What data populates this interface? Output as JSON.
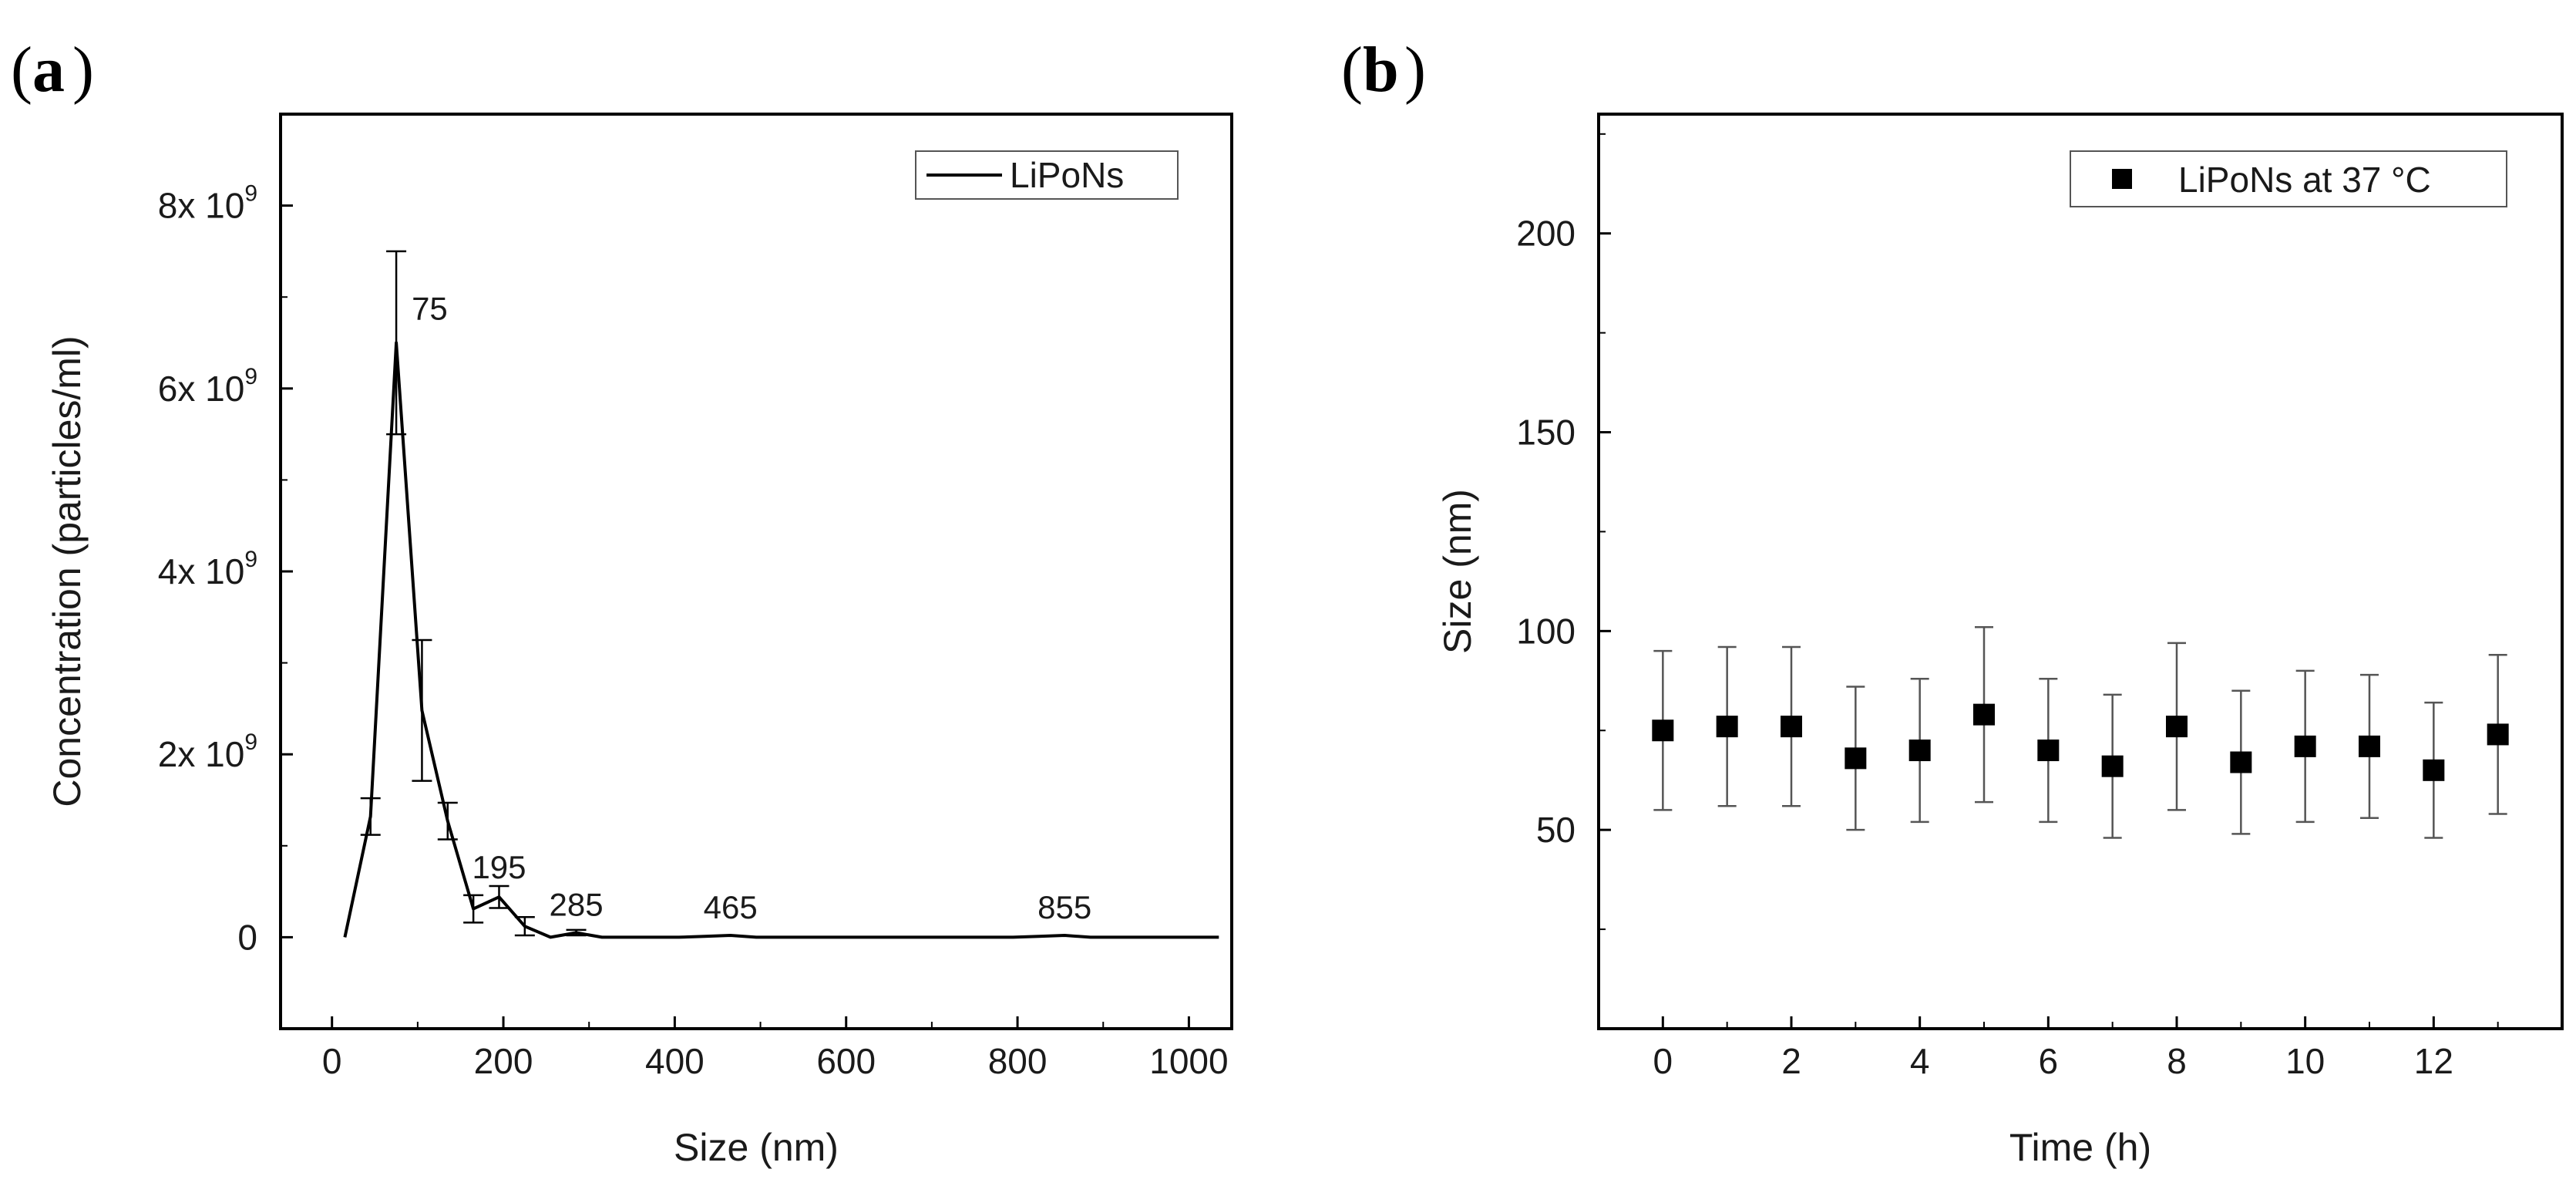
{
  "chart_data": [
    {
      "panel_label": "a",
      "type": "line",
      "xlabel": "Size (nm)",
      "ylabel": "Concentration (particles/ml)",
      "xlim": [
        -60,
        1050
      ],
      "ylim": [
        -1.0,
        9.0
      ],
      "y_unit_note": "values in units of 10^9 particles/ml",
      "x_ticks": [
        0,
        200,
        400,
        600,
        800,
        1000
      ],
      "y_ticks": [
        {
          "value": 0,
          "mant": "0",
          "exp": ""
        },
        {
          "value": 2,
          "mant": "2x 10",
          "exp": "9"
        },
        {
          "value": 4,
          "mant": "4x 10",
          "exp": "9"
        },
        {
          "value": 6,
          "mant": "6x 10",
          "exp": "9"
        },
        {
          "value": 8,
          "mant": "8x 10",
          "exp": "9"
        }
      ],
      "legend": {
        "position": "top-right",
        "entries": [
          "LiPoNs"
        ]
      },
      "series": [
        {
          "name": "LiPoNs",
          "x": [
            15,
            45,
            75,
            105,
            135,
            165,
            195,
            225,
            255,
            285,
            315,
            345,
            375,
            405,
            435,
            465,
            495,
            525,
            555,
            585,
            615,
            645,
            675,
            705,
            735,
            765,
            795,
            825,
            855,
            885,
            915,
            945,
            975,
            1005,
            1035
          ],
          "y": [
            0.0,
            1.32,
            6.5,
            2.48,
            1.27,
            0.31,
            0.44,
            0.12,
            0.0,
            0.05,
            0.0,
            0.0,
            0.0,
            0.0,
            0.01,
            0.02,
            0.0,
            0.0,
            0.0,
            0.0,
            0.0,
            0.0,
            0.0,
            0.0,
            0.0,
            0.0,
            0.0,
            0.01,
            0.02,
            0.0,
            0.0,
            0.0,
            0.0,
            0.0,
            0.0
          ],
          "error_bars": [
            {
              "x": 45,
              "err": 0.2
            },
            {
              "x": 75,
              "err": 1.0
            },
            {
              "x": 105,
              "err": 0.77
            },
            {
              "x": 135,
              "err": 0.2
            },
            {
              "x": 165,
              "err": 0.15
            },
            {
              "x": 195,
              "err": 0.12
            },
            {
              "x": 225,
              "err": 0.1
            },
            {
              "x": 285,
              "err": 0.03
            }
          ]
        }
      ],
      "annotations": [
        {
          "text": "75",
          "x": 75,
          "y": 6.5
        },
        {
          "text": "195",
          "x": 195,
          "y": 0.44
        },
        {
          "text": "285",
          "x": 285,
          "y": 0.05
        },
        {
          "text": "465",
          "x": 465,
          "y": 0.02
        },
        {
          "text": "855",
          "x": 855,
          "y": 0.02
        }
      ]
    },
    {
      "panel_label": "b",
      "type": "scatter",
      "xlabel": "Time (h)",
      "ylabel": "Size (nm)",
      "xlim": [
        -1,
        14
      ],
      "ylim": [
        0,
        230
      ],
      "x_ticks": [
        0,
        2,
        4,
        6,
        8,
        10,
        12
      ],
      "y_ticks": [
        50,
        100,
        150,
        200
      ],
      "legend": {
        "position": "top-right",
        "entries": [
          "LiPoNs at 37 °C"
        ]
      },
      "series": [
        {
          "name": "LiPoNs at 37 °C",
          "x": [
            0,
            1,
            2,
            3,
            4,
            5,
            6,
            7,
            8,
            9,
            10,
            11,
            12,
            13
          ],
          "y": [
            75,
            76,
            76,
            68,
            70,
            79,
            70,
            66,
            76,
            67,
            71,
            71,
            65,
            74
          ],
          "err": [
            20,
            20,
            20,
            18,
            18,
            22,
            18,
            18,
            21,
            18,
            19,
            18,
            17,
            20
          ]
        }
      ]
    }
  ]
}
